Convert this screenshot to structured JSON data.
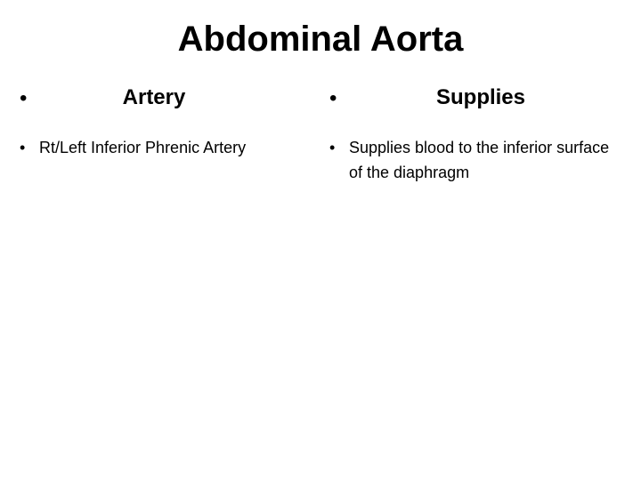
{
  "slide": {
    "title": "Abdominal Aorta",
    "left": {
      "header": "Artery",
      "items": [
        "Rt/Left Inferior Phrenic Artery"
      ]
    },
    "right": {
      "header": "Supplies",
      "items": [
        "Supplies blood to the inferior surface of the diaphragm"
      ]
    }
  },
  "style": {
    "background_color": "#ffffff",
    "text_color": "#000000",
    "title_fontsize": 40,
    "header_fontsize": 24,
    "body_fontsize": 18,
    "font_family": "Arial"
  }
}
